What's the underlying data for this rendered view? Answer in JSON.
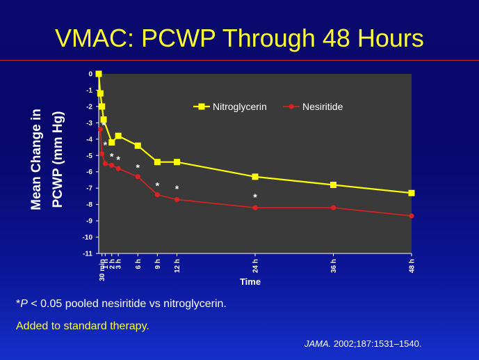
{
  "slide": {
    "title": "VMAC: PCWP Through 48 Hours",
    "footnote_star": "*",
    "footnote_p": "P",
    "footnote_text": " < 0.05 pooled nesiritide vs nitroglycerin.",
    "note": "Added to standard therapy.",
    "citation_journal": "JAMA.",
    "citation_ref": " 2002;187:1531–1540."
  },
  "colors": {
    "nitroglycerin": "#ffff00",
    "nesiritide": "#dd2222",
    "plot_background": "#3a3a3a",
    "title": "#ffff33"
  },
  "chart_data": {
    "type": "line",
    "xlabel": "Time",
    "ylabel_line1": "Mean Change in",
    "ylabel_line2": "PCWP (mm Hg)",
    "ylim": [
      -11,
      0
    ],
    "yticks": [
      0,
      -1,
      -2,
      -3,
      -4,
      -5,
      -6,
      -7,
      -8,
      -9,
      -10,
      -11
    ],
    "xlim": [
      0,
      48
    ],
    "xticks": [
      {
        "value": 0.5,
        "label": "30 min"
      },
      {
        "value": 1,
        "label": "1 h"
      },
      {
        "value": 2,
        "label": "2 h"
      },
      {
        "value": 3,
        "label": "3 h"
      },
      {
        "value": 6,
        "label": "6 h"
      },
      {
        "value": 9,
        "label": "9 h"
      },
      {
        "value": 12,
        "label": "12 h"
      },
      {
        "value": 24,
        "label": "24 h"
      },
      {
        "value": 36,
        "label": "36 h"
      },
      {
        "value": 48,
        "label": "48 h"
      }
    ],
    "legend_position": "top-right",
    "series": [
      {
        "name": "Nitroglycerin",
        "marker": "square",
        "x": [
          0,
          0.25,
          0.5,
          0.75,
          2,
          3,
          6,
          9,
          12,
          24,
          36,
          48
        ],
        "y": [
          0,
          -1.2,
          -2.0,
          -2.8,
          -4.2,
          -3.8,
          -4.4,
          -5.4,
          -5.4,
          -6.3,
          -6.8,
          -7.3
        ]
      },
      {
        "name": "Nesiritide",
        "marker": "circle",
        "x": [
          0.25,
          0.5,
          1,
          2,
          3,
          6,
          9,
          12,
          24,
          36,
          48
        ],
        "y": [
          -3.4,
          -4.9,
          -5.5,
          -5.6,
          -5.8,
          -6.3,
          -7.4,
          -7.7,
          -8.2,
          -8.2,
          -8.7
        ]
      }
    ],
    "significance_markers": {
      "symbol": "*",
      "points": [
        {
          "x": 0.75,
          "y": -3.1
        },
        {
          "x": 1,
          "y": -4.3
        },
        {
          "x": 2,
          "y": -5.0
        },
        {
          "x": 3,
          "y": -5.2
        },
        {
          "x": 6,
          "y": -5.7
        },
        {
          "x": 9,
          "y": -6.8
        },
        {
          "x": 12,
          "y": -7.0
        },
        {
          "x": 24,
          "y": -7.5
        }
      ]
    }
  }
}
